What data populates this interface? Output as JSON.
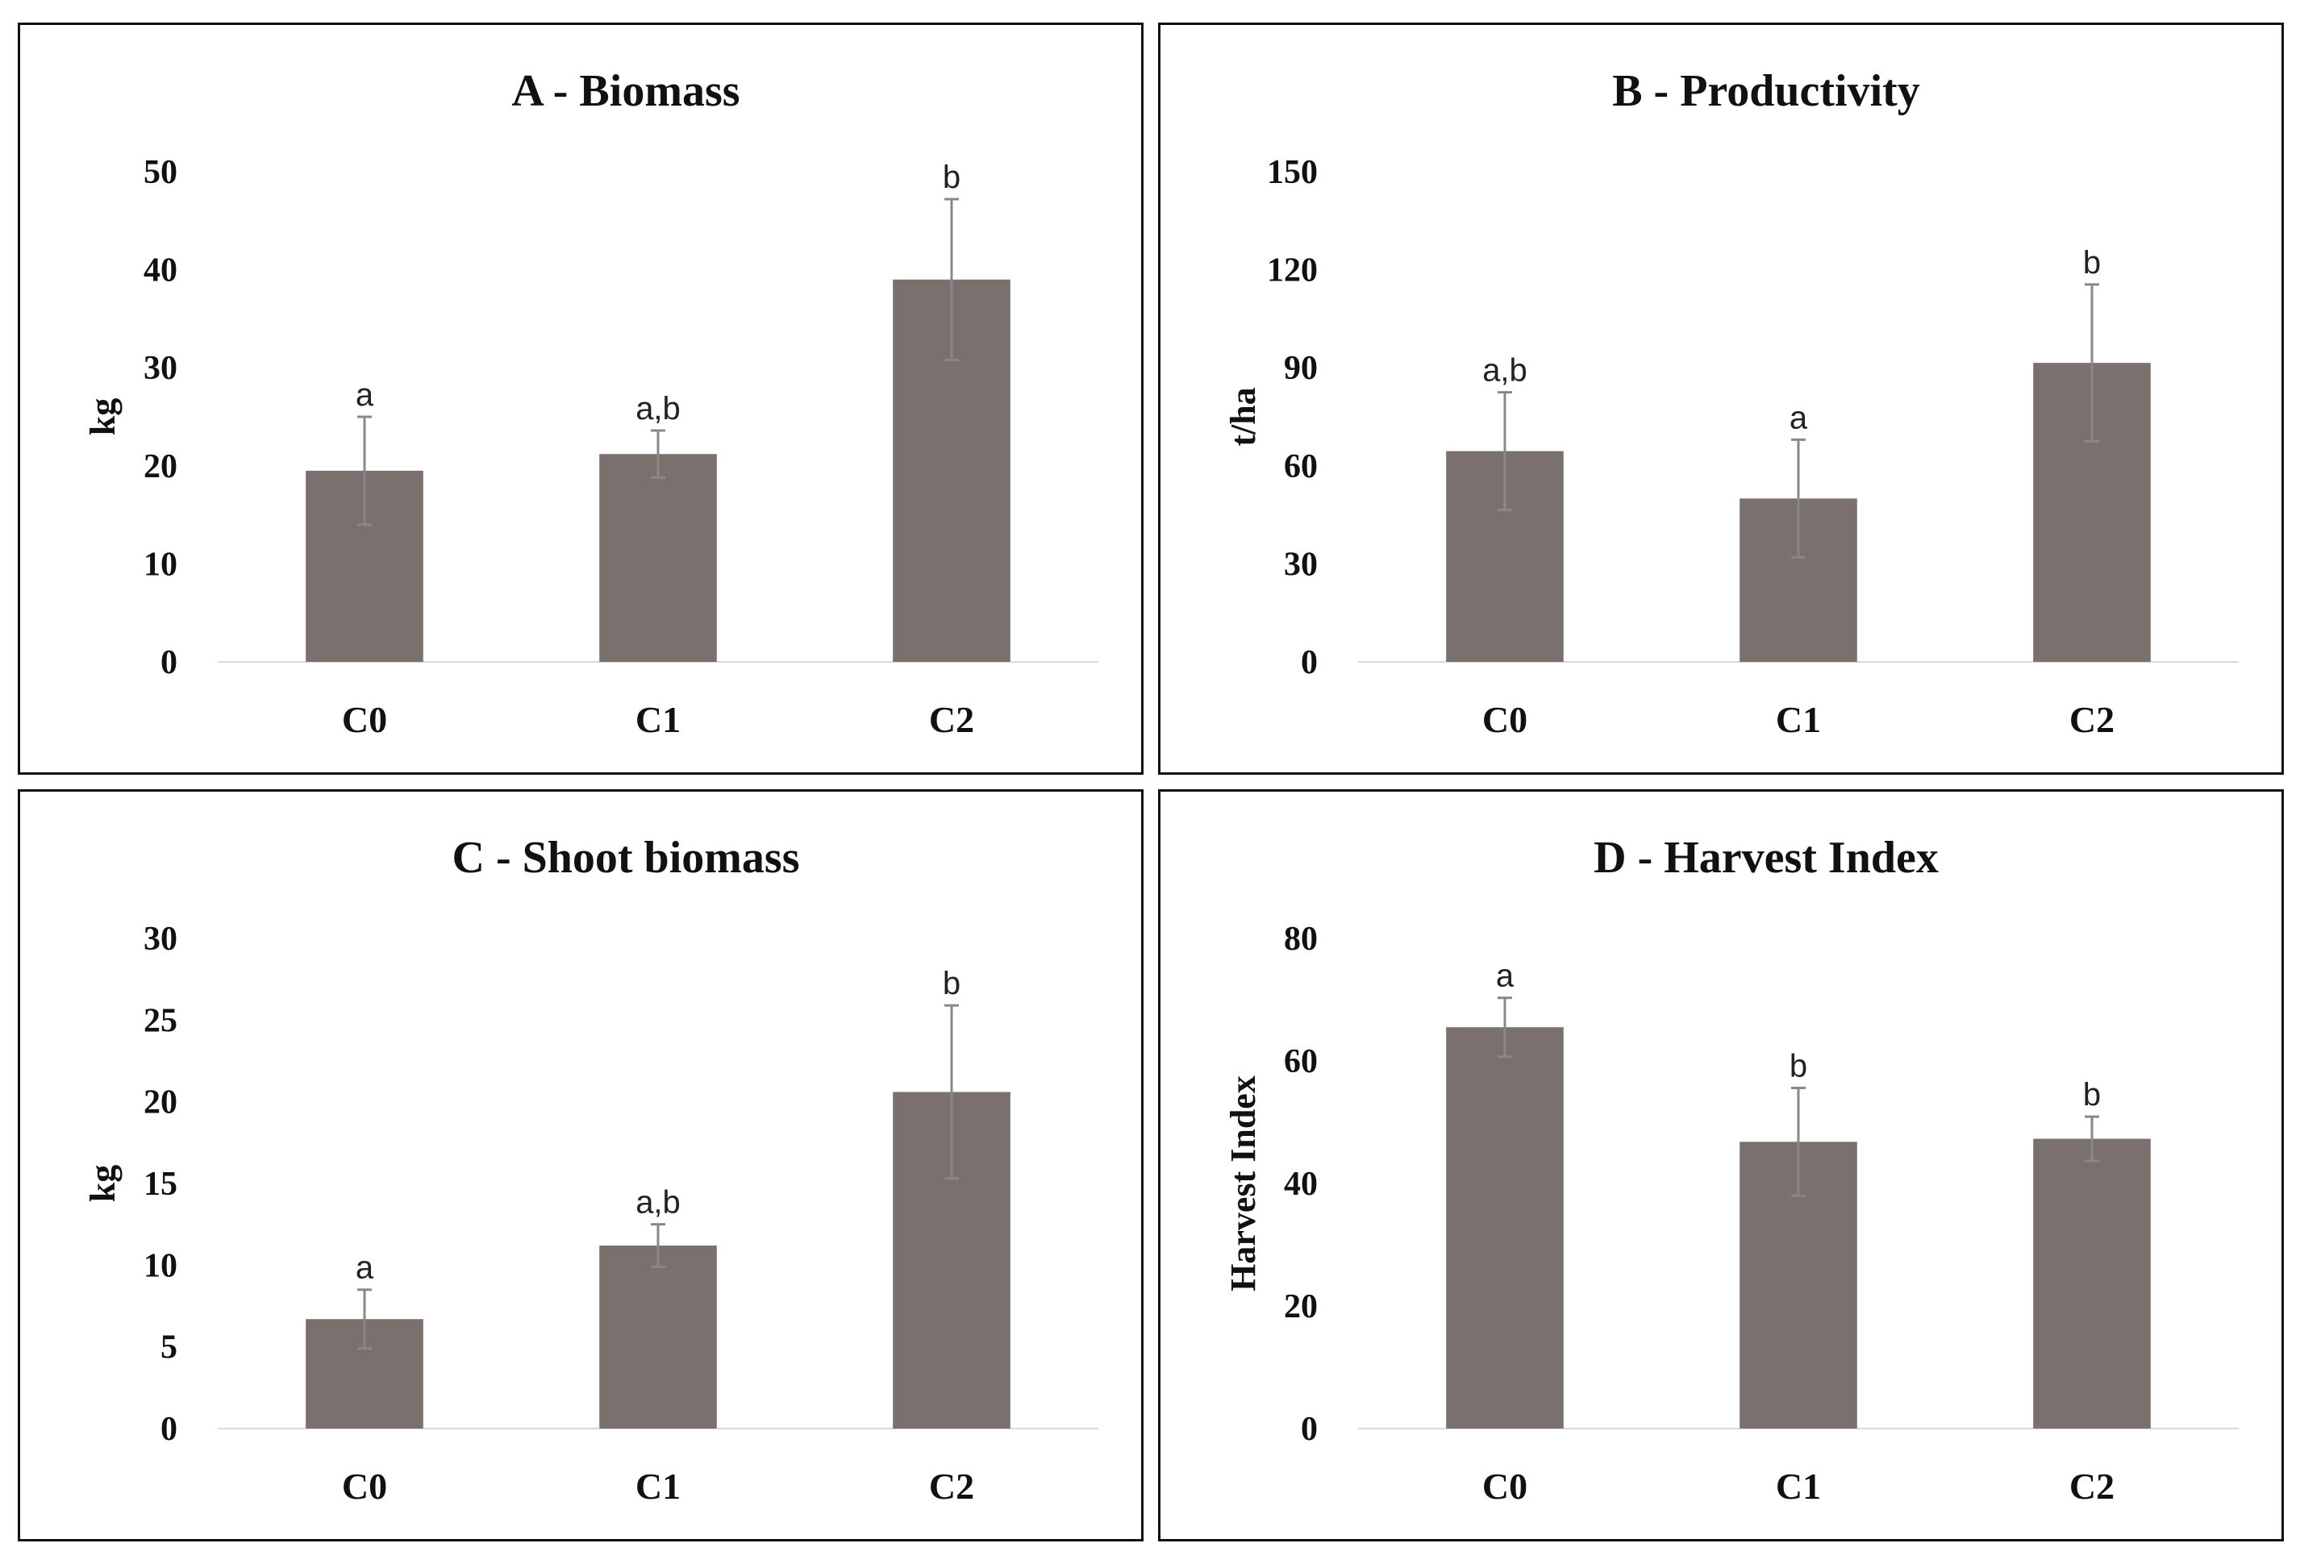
{
  "colors": {
    "bar": "#7a706d",
    "error_bar": "#888888",
    "baseline": "#d9d9d9",
    "border": "#111111"
  },
  "chart_data": [
    {
      "id": "A",
      "type": "bar",
      "title": "A - Biomass",
      "ylabel": "kg",
      "xlabel": "",
      "categories": [
        "C0",
        "C1",
        "C2"
      ],
      "values": [
        19.5,
        21.2,
        39
      ],
      "errors": [
        5.5,
        2.4,
        8.2
      ],
      "significance": [
        "a",
        "a,b",
        "b"
      ],
      "ylim": [
        0,
        50
      ],
      "yticks": [
        0,
        10,
        20,
        30,
        40,
        50
      ]
    },
    {
      "id": "B",
      "type": "bar",
      "title": "B - Productivity",
      "ylabel": "t/ha",
      "xlabel": "",
      "categories": [
        "C0",
        "C1",
        "C2"
      ],
      "values": [
        64.5,
        50,
        91.5
      ],
      "errors": [
        18,
        18,
        24
      ],
      "significance": [
        "a,b",
        "a",
        "b"
      ],
      "ylim": [
        0,
        150
      ],
      "yticks": [
        0,
        30,
        60,
        90,
        120,
        150
      ]
    },
    {
      "id": "C",
      "type": "bar",
      "title": "C - Shoot biomass",
      "ylabel": "kg",
      "xlabel": "",
      "categories": [
        "C0",
        "C1",
        "C2"
      ],
      "values": [
        6.7,
        11.2,
        20.6
      ],
      "errors": [
        1.8,
        1.3,
        5.3
      ],
      "significance": [
        "a",
        "a,b",
        "b"
      ],
      "ylim": [
        0,
        30
      ],
      "yticks": [
        0,
        5,
        10,
        15,
        20,
        25,
        30
      ]
    },
    {
      "id": "D",
      "type": "bar",
      "title": "D - Harvest Index",
      "ylabel": "Harvest Index",
      "xlabel": "",
      "categories": [
        "C0",
        "C1",
        "C2"
      ],
      "values": [
        65.5,
        46.8,
        47.3
      ],
      "errors": [
        4.8,
        8.8,
        3.6
      ],
      "significance": [
        "a",
        "b",
        "b"
      ],
      "ylim": [
        0,
        80
      ],
      "yticks": [
        0,
        20,
        40,
        60,
        80
      ]
    }
  ]
}
